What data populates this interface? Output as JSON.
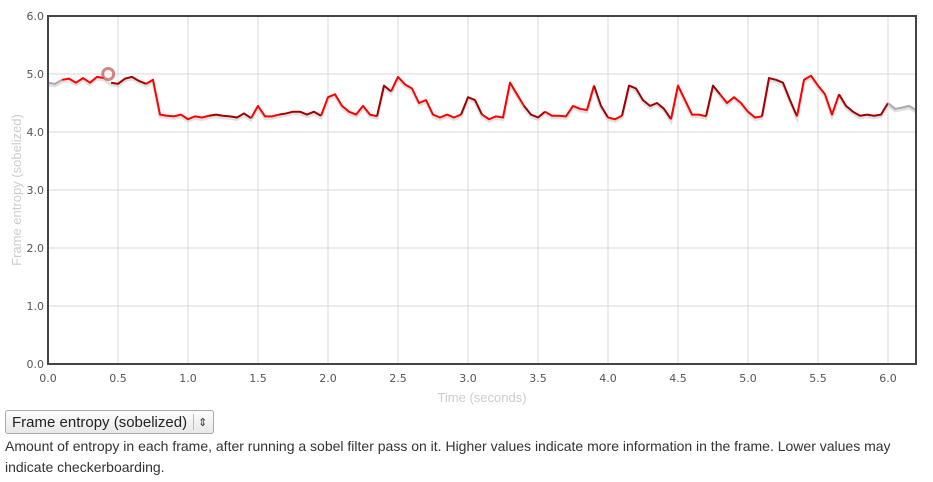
{
  "chart_data": {
    "type": "line",
    "xlabel": "Time (seconds)",
    "ylabel": "Frame entropy (sobelized)",
    "xlim": [
      0,
      6.2
    ],
    "ylim": [
      0,
      6
    ],
    "xticks": [
      "0.0",
      "0.5",
      "1.0",
      "1.5",
      "2.0",
      "2.5",
      "3.0",
      "3.5",
      "4.0",
      "4.5",
      "5.0",
      "5.5",
      "6.0"
    ],
    "yticks": [
      "0.0",
      "1.0",
      "2.0",
      "3.0",
      "4.0",
      "5.0",
      "6.0"
    ],
    "grid": true,
    "x_step": 0.05,
    "values": [
      4.85,
      4.83,
      4.9,
      4.92,
      4.85,
      4.93,
      4.85,
      4.95,
      4.93,
      4.85,
      4.83,
      4.92,
      4.95,
      4.88,
      4.83,
      4.9,
      4.3,
      4.28,
      4.27,
      4.3,
      4.22,
      4.27,
      4.25,
      4.28,
      4.3,
      4.28,
      4.27,
      4.25,
      4.32,
      4.24,
      4.45,
      4.27,
      4.27,
      4.3,
      4.32,
      4.35,
      4.35,
      4.3,
      4.35,
      4.28,
      4.6,
      4.65,
      4.45,
      4.35,
      4.3,
      4.45,
      4.3,
      4.27,
      4.8,
      4.7,
      4.95,
      4.82,
      4.75,
      4.5,
      4.55,
      4.3,
      4.25,
      4.3,
      4.25,
      4.3,
      4.6,
      4.55,
      4.3,
      4.22,
      4.27,
      4.25,
      4.85,
      4.65,
      4.45,
      4.3,
      4.25,
      4.35,
      4.28,
      4.28,
      4.27,
      4.45,
      4.4,
      4.38,
      4.8,
      4.45,
      4.25,
      4.22,
      4.28,
      4.8,
      4.75,
      4.55,
      4.45,
      4.5,
      4.4,
      4.22,
      4.8,
      4.55,
      4.3,
      4.3,
      4.27,
      4.8,
      4.65,
      4.5,
      4.6,
      4.5,
      4.35,
      4.25,
      4.27,
      4.93,
      4.9,
      4.85,
      4.55,
      4.27,
      4.9,
      4.97,
      4.8,
      4.65,
      4.3,
      4.65,
      4.45,
      4.35,
      4.28,
      4.3,
      4.28,
      4.3,
      4.5,
      4.4,
      4.42,
      4.45,
      4.38
    ],
    "segments": [
      {
        "start": 0,
        "end": 0.1,
        "color": "#aaaaaa"
      },
      {
        "start": 0.1,
        "end": 0.43,
        "color": "#ff0000"
      },
      {
        "start": 0.43,
        "end": 0.7,
        "color": "#a00000"
      },
      {
        "start": 0.7,
        "end": 1.15,
        "color": "#ff0000"
      },
      {
        "start": 1.15,
        "end": 1.45,
        "color": "#a00000"
      },
      {
        "start": 1.45,
        "end": 1.65,
        "color": "#ff0000"
      },
      {
        "start": 1.65,
        "end": 1.95,
        "color": "#a00000"
      },
      {
        "start": 1.95,
        "end": 2.35,
        "color": "#ff0000"
      },
      {
        "start": 2.35,
        "end": 2.45,
        "color": "#a00000"
      },
      {
        "start": 2.45,
        "end": 2.95,
        "color": "#ff0000"
      },
      {
        "start": 2.95,
        "end": 3.1,
        "color": "#a00000"
      },
      {
        "start": 3.1,
        "end": 3.4,
        "color": "#ff0000"
      },
      {
        "start": 3.4,
        "end": 3.55,
        "color": "#a00000"
      },
      {
        "start": 3.55,
        "end": 3.9,
        "color": "#ff0000"
      },
      {
        "start": 3.9,
        "end": 4.0,
        "color": "#a00000"
      },
      {
        "start": 4.0,
        "end": 4.1,
        "color": "#ff0000"
      },
      {
        "start": 4.1,
        "end": 4.45,
        "color": "#a00000"
      },
      {
        "start": 4.45,
        "end": 4.7,
        "color": "#ff0000"
      },
      {
        "start": 4.7,
        "end": 4.8,
        "color": "#a00000"
      },
      {
        "start": 4.8,
        "end": 5.1,
        "color": "#ff0000"
      },
      {
        "start": 5.1,
        "end": 5.35,
        "color": "#a00000"
      },
      {
        "start": 5.35,
        "end": 5.65,
        "color": "#ff0000"
      },
      {
        "start": 5.65,
        "end": 6.0,
        "color": "#a00000"
      },
      {
        "start": 6.0,
        "end": 6.2,
        "color": "#aaaaaa"
      }
    ],
    "highlight": {
      "x": 0.43,
      "y": 5.0,
      "color": "#c05050"
    }
  },
  "selector": {
    "value": "Frame entropy (sobelized)"
  },
  "description": "Amount of entropy in each frame, after running a sobel filter pass on it. Higher values indicate more information in the frame. Lower values may indicate checkerboarding."
}
